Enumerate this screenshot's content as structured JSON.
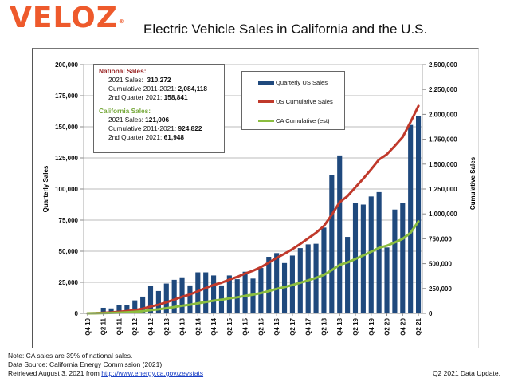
{
  "header": {
    "logo": "VELOZ",
    "logo_mark": "®",
    "title": "Electric Vehicle Sales in California and the U.S."
  },
  "info_box": {
    "national_heading": "National Sales:",
    "national_rows": [
      {
        "label": "2021 Sales:",
        "value": "310,272"
      },
      {
        "label": "Cumulative 2011-2021:",
        "value": "2,084,118"
      },
      {
        "label": "2nd Quarter 2021:",
        "value": "158,841"
      }
    ],
    "ca_heading": "California Sales:",
    "ca_rows": [
      {
        "label": "2021 Sales:",
        "value": "121,006"
      },
      {
        "label": "Cumulative 2011-2021:",
        "value": "924,822"
      },
      {
        "label": "2nd Quarter 2021:",
        "value": "61,948"
      }
    ]
  },
  "colors": {
    "bars": "#1f497d",
    "us_cumulative": "#c0392b",
    "ca_cumulative": "#8bbd3f",
    "logo": "#ee5a2c",
    "national_heading": "#9b2a2a",
    "ca_heading": "#76a83a"
  },
  "chart_data": {
    "type": "bar",
    "title": "Electric Vehicle Sales in California and the U.S.",
    "xlabel": "",
    "ylabel": "Quarterly Sales",
    "y2label": "Cumulative Sales",
    "ylim": [
      0,
      200000
    ],
    "y2lim": [
      0,
      2500000
    ],
    "yticks": [
      "0",
      "25,000",
      "50,000",
      "75,000",
      "100,000",
      "125,000",
      "150,000",
      "175,000",
      "200,000"
    ],
    "y2ticks": [
      "0",
      "250,000",
      "500,000",
      "750,000",
      "1,000,000",
      "1,250,000",
      "1,500,000",
      "1,750,000",
      "2,000,000",
      "2,250,000",
      "2,500,000"
    ],
    "grid": true,
    "legend_position": "top-center",
    "categories": [
      "Q4 10",
      "Q1 11",
      "Q2 11",
      "Q3 11",
      "Q4 11",
      "Q1 12",
      "Q2 12",
      "Q3 12",
      "Q4 12",
      "Q1 13",
      "Q2 13",
      "Q3 13",
      "Q4 13",
      "Q1 14",
      "Q2 14",
      "Q3 14",
      "Q4 14",
      "Q1 15",
      "Q2 15",
      "Q3 15",
      "Q4 15",
      "Q1 16",
      "Q2 16",
      "Q3 16",
      "Q4 16",
      "Q1 17",
      "Q2 17",
      "Q3 17",
      "Q4 17",
      "Q1 18",
      "Q2 18",
      "Q3 18",
      "Q4 18",
      "Q1 19",
      "Q2 19",
      "Q3 19",
      "Q4 19",
      "Q1 20",
      "Q2 20",
      "Q3 20",
      "Q4 20",
      "Q1 21",
      "Q2 21"
    ],
    "xtick_labels": [
      "Q4 10",
      "Q2 11",
      "Q4 11",
      "Q2 12",
      "Q4 12",
      "Q2 13",
      "Q4 13",
      "Q2 14",
      "Q4 14",
      "Q2 15",
      "Q4 15",
      "Q2 16",
      "Q4 16",
      "Q2 17",
      "Q4 17",
      "Q2 18",
      "Q4 18",
      "Q2 19",
      "Q4 19",
      "Q2 20",
      "Q4 20",
      "Q2 21"
    ],
    "series": [
      {
        "name": "Quarterly US Sales",
        "type": "bar",
        "axis": "left",
        "values": [
          300,
          1000,
          4500,
          4000,
          6500,
          7000,
          10500,
          13500,
          22000,
          18000,
          24000,
          27000,
          29000,
          22500,
          33000,
          33000,
          30500,
          22500,
          30500,
          27500,
          33500,
          28000,
          36500,
          45500,
          48500,
          40500,
          46500,
          52500,
          55500,
          56000,
          69000,
          111000,
          127000,
          61500,
          88500,
          87500,
          94000,
          97500,
          53000,
          83500,
          89000,
          151500,
          158841
        ]
      },
      {
        "name": "US Cumulative Sales",
        "type": "line",
        "axis": "right",
        "values": [
          300,
          1300,
          5800,
          9800,
          16300,
          23300,
          33800,
          47300,
          69300,
          87300,
          111300,
          138300,
          167300,
          189800,
          222800,
          255800,
          286300,
          308800,
          339300,
          366800,
          400300,
          428300,
          464800,
          510300,
          558800,
          599300,
          645800,
          698300,
          753800,
          809800,
          878800,
          989800,
          1116800,
          1178300,
          1266800,
          1354300,
          1448300,
          1545800,
          1598800,
          1682300,
          1771300,
          1922800,
          2084118
        ]
      },
      {
        "name": "CA Cumulative (est)",
        "type": "line",
        "axis": "right",
        "values": [
          200,
          700,
          2500,
          4500,
          7500,
          11000,
          16000,
          22500,
          32500,
          41000,
          52000,
          64000,
          77000,
          87000,
          101000,
          115000,
          128000,
          137500,
          150500,
          162000,
          176000,
          188000,
          204000,
          224500,
          246500,
          264500,
          285000,
          308000,
          332500,
          357000,
          387000,
          435000,
          487500,
          512000,
          547500,
          582500,
          620000,
          659000,
          680000,
          713500,
          749000,
          810000,
          924822
        ]
      }
    ]
  },
  "legend": [
    {
      "label": "Quarterly US Sales",
      "color": "#1f497d"
    },
    {
      "label": "US Cumulative Sales",
      "color": "#c0392b"
    },
    {
      "label": "CA Cumulative (est)",
      "color": "#8bbd3f"
    }
  ],
  "footer": {
    "note": "Note: CA sales are 39% of national sales.",
    "source": "Data Source: California Energy Commission (2021).",
    "retrieved_prefix": "Retrieved August 3, 2021 from ",
    "link": "http://www.energy.ca.gov/zevstats",
    "update": "Q2 2021 Data Update."
  }
}
